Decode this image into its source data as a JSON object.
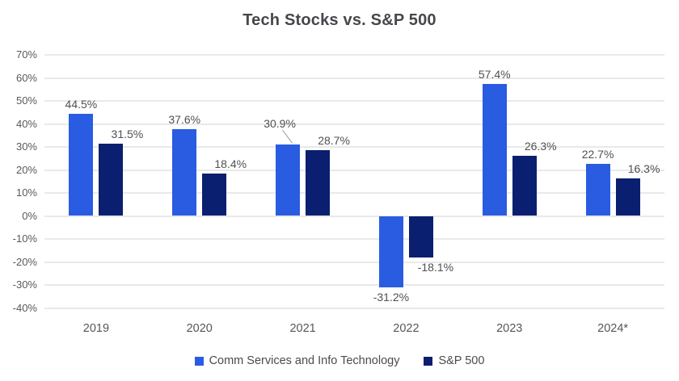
{
  "title": "Tech Stocks vs. S&P 500",
  "chart_data": {
    "type": "bar",
    "title": "Tech Stocks vs. S&P 500",
    "categories": [
      "2019",
      "2020",
      "2021",
      "2022",
      "2023",
      "2024*"
    ],
    "series": [
      {
        "name": "Comm Services and Info Technology",
        "color": "#2a5ce2",
        "values": [
          44.5,
          37.6,
          30.9,
          -31.2,
          57.4,
          22.7
        ]
      },
      {
        "name": "S&P 500",
        "color": "#0b1f70",
        "values": [
          31.5,
          18.4,
          28.7,
          -18.1,
          26.3,
          16.3
        ]
      }
    ],
    "data_labels": [
      [
        "44.5%",
        "37.6%",
        "30.9%",
        "-31.2%",
        "57.4%",
        "22.7%"
      ],
      [
        "31.5%",
        "18.4%",
        "28.7%",
        "-18.1%",
        "26.3%",
        "16.3%"
      ]
    ],
    "value_suffix": "%",
    "ylim": [
      -40,
      70
    ],
    "ytick_step": 10,
    "ytick_labels": [
      "70%",
      "60%",
      "50%",
      "40%",
      "30%",
      "20%",
      "10%",
      "0%",
      "-10%",
      "-20%",
      "-30%",
      "-40%"
    ],
    "xlabel": "",
    "ylabel": "",
    "grid": true,
    "legend_position": "bottom",
    "label_callouts": [
      {
        "category_index": 2,
        "series_index": 0,
        "dx": -10,
        "dy": -14
      }
    ]
  }
}
